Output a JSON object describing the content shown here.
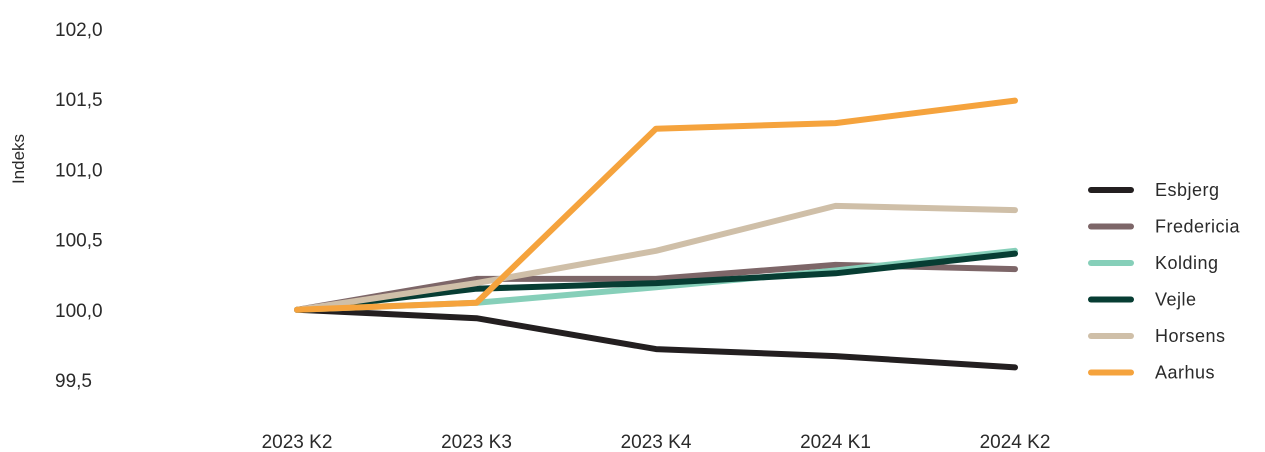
{
  "chart_data": {
    "type": "line",
    "ylabel": "Indeks",
    "xlabel": "",
    "categories": [
      "2023 K2",
      "2023 K3",
      "2023 K4",
      "2024 K1",
      "2024 K2"
    ],
    "y_ticks": [
      "99,5",
      "100,0",
      "100,5",
      "101,0",
      "101,5",
      "102,0"
    ],
    "ylim": [
      99.5,
      102.0
    ],
    "grid": false,
    "legend_position": "right",
    "series": [
      {
        "name": "Esbjerg",
        "color": "#231f20",
        "values": [
          100.0,
          99.94,
          99.72,
          99.67,
          99.59
        ]
      },
      {
        "name": "Fredericia",
        "color": "#7d6668",
        "values": [
          100.0,
          100.22,
          100.22,
          100.32,
          100.29
        ]
      },
      {
        "name": "Kolding",
        "color": "#86cfb9",
        "values": [
          100.0,
          100.05,
          100.16,
          100.28,
          100.42
        ]
      },
      {
        "name": "Vejle",
        "color": "#073d33",
        "values": [
          100.0,
          100.15,
          100.19,
          100.26,
          100.4
        ]
      },
      {
        "name": "Horsens",
        "color": "#cfbfa8",
        "values": [
          100.0,
          100.19,
          100.42,
          100.74,
          100.71
        ]
      },
      {
        "name": "Aarhus",
        "color": "#f5a33d",
        "values": [
          100.0,
          100.05,
          101.29,
          101.33,
          101.49
        ]
      }
    ]
  }
}
